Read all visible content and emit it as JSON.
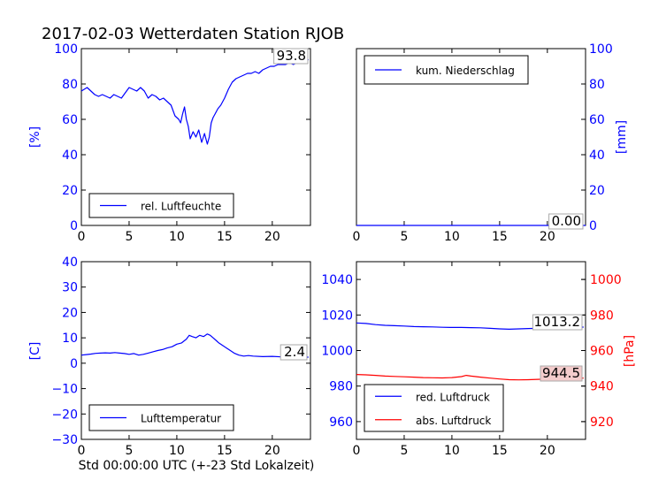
{
  "figure_title": "2017-02-03 Wetterdaten Station RJOB",
  "x_axis_caption": "Std 00:00:00 UTC (+-23 Std Lokalzeit)",
  "colors": {
    "blue": "#0000ff",
    "red": "#ff0000",
    "box_bg": "#ffffff",
    "red_box_bg": "#f4cccc",
    "axis": "#000000"
  },
  "chart_data": [
    {
      "id": "humidity",
      "type": "line",
      "ylabel": "[%]",
      "ylim": [
        0,
        100
      ],
      "yticks": [
        0,
        20,
        40,
        60,
        80,
        100
      ],
      "xlim": [
        0,
        24
      ],
      "xticks": [
        0,
        5,
        10,
        15,
        20
      ],
      "current_value": "93.8",
      "legend_position": "lower-left",
      "series": [
        {
          "name": "rel. Luftfeuchte",
          "color": "#0000ff",
          "x": [
            0,
            0.3,
            0.6,
            1,
            1.4,
            1.8,
            2.2,
            2.6,
            3,
            3.4,
            3.8,
            4.2,
            4.6,
            5,
            5.4,
            5.8,
            6.2,
            6.6,
            7,
            7.4,
            7.8,
            8.2,
            8.6,
            9,
            9.4,
            9.8,
            10.2,
            10.4,
            10.6,
            10.8,
            11,
            11.2,
            11.4,
            11.7,
            12,
            12.3,
            12.6,
            12.9,
            13.2,
            13.4,
            13.6,
            13.8,
            14,
            14.3,
            14.6,
            15,
            15.4,
            15.8,
            16.2,
            16.6,
            17,
            17.4,
            17.8,
            18.2,
            18.6,
            19,
            19.4,
            19.8,
            20.2,
            20.6,
            21,
            21.4,
            21.8,
            22.2,
            22.6,
            23,
            23.4,
            23.8
          ],
          "y": [
            76,
            77,
            78,
            76,
            74,
            73,
            74,
            73,
            72,
            74,
            73,
            72,
            75,
            78,
            77,
            76,
            78,
            76,
            72,
            74,
            73,
            71,
            72,
            70,
            68,
            62,
            60,
            58,
            63,
            67,
            60,
            56,
            49,
            53,
            50,
            54,
            47,
            52,
            46,
            50,
            58,
            61,
            63,
            66,
            68,
            72,
            77,
            81,
            83,
            84,
            85,
            86,
            86,
            87,
            86,
            88,
            89,
            90,
            90,
            91,
            91,
            91,
            92,
            91,
            92,
            92,
            93,
            93.8
          ]
        }
      ]
    },
    {
      "id": "precipitation",
      "type": "line",
      "ylabel": "[mm]",
      "ylim": [
        0,
        100
      ],
      "yticks": [
        0,
        20,
        40,
        60,
        80,
        100
      ],
      "y_axis_side": "right",
      "xlim": [
        0,
        24
      ],
      "xticks": [
        0,
        5,
        10,
        15,
        20
      ],
      "current_value": "0.00",
      "legend_position": "upper-left",
      "series": [
        {
          "name": "kum. Niederschlag",
          "color": "#0000ff",
          "x": [
            0,
            24
          ],
          "y": [
            0,
            0
          ]
        }
      ]
    },
    {
      "id": "temperature",
      "type": "line",
      "ylabel": "[C]",
      "ylim": [
        -30,
        40
      ],
      "yticks": [
        -30,
        -20,
        -10,
        0,
        10,
        20,
        30,
        40
      ],
      "xlim": [
        0,
        24
      ],
      "xticks": [
        0,
        5,
        10,
        15,
        20
      ],
      "xlabel": "Std 00:00:00 UTC (+-23 Std Lokalzeit)",
      "current_value": "2.4",
      "legend_position": "lower-left",
      "series": [
        {
          "name": "Lufttemperatur",
          "color": "#0000ff",
          "x": [
            0,
            0.5,
            1,
            1.5,
            2,
            2.5,
            3,
            3.5,
            4,
            4.5,
            5,
            5.5,
            6,
            6.5,
            7,
            7.5,
            8,
            8.5,
            9,
            9.5,
            10,
            10.5,
            11,
            11.3,
            11.6,
            12,
            12.4,
            12.8,
            13.2,
            13.5,
            13.8,
            14.1,
            14.4,
            14.8,
            15.2,
            15.6,
            16,
            16.5,
            17,
            17.5,
            18,
            19,
            20,
            21,
            22,
            23,
            23.8
          ],
          "y": [
            3.2,
            3.4,
            3.6,
            3.9,
            4.0,
            4.1,
            4.0,
            4.2,
            4.0,
            3.8,
            3.5,
            3.8,
            3.2,
            3.5,
            4.0,
            4.5,
            5.0,
            5.4,
            6.0,
            6.5,
            7.5,
            8.0,
            9.5,
            11.0,
            10.5,
            10.0,
            11.0,
            10.5,
            11.5,
            11.0,
            10.0,
            9.0,
            8.0,
            7.0,
            6.0,
            5.0,
            4.0,
            3.2,
            2.8,
            3.0,
            2.8,
            2.6,
            2.7,
            2.5,
            2.6,
            2.4,
            2.4
          ]
        }
      ]
    },
    {
      "id": "pressure",
      "type": "line",
      "ylim": [
        950,
        1050
      ],
      "yticks": [
        960,
        980,
        1000,
        1020,
        1040
      ],
      "y2label": "[hPa]",
      "y2lim": [
        910,
        1010
      ],
      "y2ticks": [
        920,
        940,
        960,
        980,
        1000
      ],
      "xlim": [
        0,
        24
      ],
      "xticks": [
        0,
        5,
        10,
        15,
        20
      ],
      "current_value_reduced": "1013.2",
      "current_value_absolute": "944.5",
      "legend_position": "lower-left",
      "series": [
        {
          "name": "red. Luftdruck",
          "color": "#0000ff",
          "axis": "left",
          "x": [
            0,
            1,
            2,
            3,
            4,
            5,
            6,
            7,
            8,
            9,
            10,
            11,
            12,
            13,
            14,
            15,
            16,
            17,
            18,
            19,
            20,
            21,
            22,
            23,
            23.8
          ],
          "y": [
            1015.5,
            1015.2,
            1014.6,
            1014.2,
            1014.0,
            1013.8,
            1013.5,
            1013.4,
            1013.3,
            1013.1,
            1013.0,
            1013.0,
            1012.9,
            1012.8,
            1012.5,
            1012.2,
            1012.0,
            1012.2,
            1012.4,
            1012.5,
            1012.7,
            1012.9,
            1013.0,
            1013.1,
            1013.2
          ]
        },
        {
          "name": "abs. Luftdruck",
          "color": "#ff0000",
          "axis": "right",
          "x": [
            0,
            1,
            2,
            3,
            4,
            5,
            6,
            7,
            8,
            9,
            10,
            11,
            11.5,
            12,
            13,
            14,
            15,
            16,
            17,
            18,
            19,
            20,
            21,
            22,
            23,
            23.8
          ],
          "y": [
            946.5,
            946.3,
            946.0,
            945.6,
            945.4,
            945.2,
            945.0,
            944.8,
            944.7,
            944.6,
            944.8,
            945.3,
            946.0,
            945.6,
            945.0,
            944.5,
            944.0,
            943.6,
            943.5,
            943.6,
            943.8,
            944.0,
            944.2,
            944.3,
            944.4,
            944.5
          ]
        }
      ]
    }
  ]
}
